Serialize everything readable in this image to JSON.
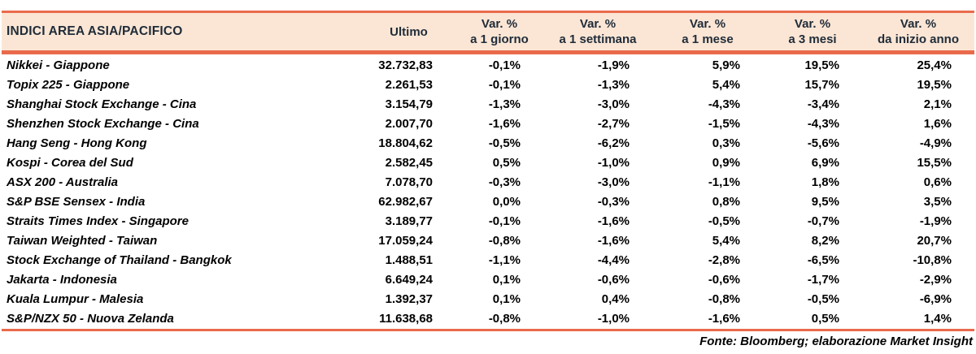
{
  "colors": {
    "accent": "#E96A4B",
    "header_bg": "#FBE6D5",
    "header_text": "#1F2B38"
  },
  "table": {
    "title": "INDICI AREA ASIA/PACIFICO",
    "ultimo_label": "Ultimo",
    "var_label": "Var. %",
    "periods": [
      "a 1 giorno",
      "a 1 settimana",
      "a 1 mese",
      "a 3 mesi",
      "da inizio anno"
    ],
    "rows": [
      {
        "name": "Nikkei - Giappone",
        "ultimo": "32.732,83",
        "d1": "-0,1%",
        "w1": "-1,9%",
        "m1": "5,9%",
        "m3": "19,5%",
        "ytd": "25,4%"
      },
      {
        "name": "Topix 225 - Giappone",
        "ultimo": "2.261,53",
        "d1": "-0,1%",
        "w1": "-1,3%",
        "m1": "5,4%",
        "m3": "15,7%",
        "ytd": "19,5%"
      },
      {
        "name": "Shanghai Stock Exchange - Cina",
        "ultimo": "3.154,79",
        "d1": "-1,3%",
        "w1": "-3,0%",
        "m1": "-4,3%",
        "m3": "-3,4%",
        "ytd": "2,1%"
      },
      {
        "name": "Shenzhen Stock Exchange - Cina",
        "ultimo": "2.007,70",
        "d1": "-1,6%",
        "w1": "-2,7%",
        "m1": "-1,5%",
        "m3": "-4,3%",
        "ytd": "1,6%"
      },
      {
        "name": "Hang Seng - Hong Kong",
        "ultimo": "18.804,62",
        "d1": "-0,5%",
        "w1": "-6,2%",
        "m1": "0,3%",
        "m3": "-5,6%",
        "ytd": "-4,9%"
      },
      {
        "name": "Kospi - Corea del Sud",
        "ultimo": "2.582,45",
        "d1": "0,5%",
        "w1": "-1,0%",
        "m1": "0,9%",
        "m3": "6,9%",
        "ytd": "15,5%"
      },
      {
        "name": "ASX 200 - Australia",
        "ultimo": "7.078,70",
        "d1": "-0,3%",
        "w1": "-3,0%",
        "m1": "-1,1%",
        "m3": "1,8%",
        "ytd": "0,6%"
      },
      {
        "name": "S&P BSE Sensex - India",
        "ultimo": "62.982,67",
        "d1": "0,0%",
        "w1": "-0,3%",
        "m1": "0,8%",
        "m3": "9,5%",
        "ytd": "3,5%"
      },
      {
        "name": "Straits Times Index - Singapore",
        "ultimo": "3.189,77",
        "d1": "-0,1%",
        "w1": "-1,6%",
        "m1": "-0,5%",
        "m3": "-0,7%",
        "ytd": "-1,9%"
      },
      {
        "name": "Taiwan Weighted - Taiwan",
        "ultimo": "17.059,24",
        "d1": "-0,8%",
        "w1": "-1,6%",
        "m1": "5,4%",
        "m3": "8,2%",
        "ytd": "20,7%"
      },
      {
        "name": "Stock Exchange of Thailand - Bangkok",
        "ultimo": "1.488,51",
        "d1": "-1,1%",
        "w1": "-4,4%",
        "m1": "-2,8%",
        "m3": "-6,5%",
        "ytd": "-10,8%"
      },
      {
        "name": "Jakarta - Indonesia",
        "ultimo": "6.649,24",
        "d1": "0,1%",
        "w1": "-0,6%",
        "m1": "-0,6%",
        "m3": "-1,7%",
        "ytd": "-2,9%"
      },
      {
        "name": "Kuala Lumpur - Malesia",
        "ultimo": "1.392,37",
        "d1": "0,1%",
        "w1": "0,4%",
        "m1": "-0,8%",
        "m3": "-0,5%",
        "ytd": "-6,9%"
      },
      {
        "name": "S&P/NZX 50 - Nuova Zelanda",
        "ultimo": "11.638,68",
        "d1": "-0,8%",
        "w1": "-1,0%",
        "m1": "-1,6%",
        "m3": "0,5%",
        "ytd": "1,4%"
      }
    ]
  },
  "footer": "Fonte: Bloomberg; elaborazione Market Insight",
  "chart_data": {
    "type": "table",
    "title": "INDICI AREA ASIA/PACIFICO",
    "columns": [
      "INDICI AREA ASIA/PACIFICO",
      "Ultimo",
      "Var. % a 1 giorno",
      "Var. % a 1 settimana",
      "Var. % a 1 mese",
      "Var. % a 3 mesi",
      "Var. % da inizio anno"
    ],
    "rows": [
      [
        "Nikkei - Giappone",
        "32.732,83",
        "-0,1%",
        "-1,9%",
        "5,9%",
        "19,5%",
        "25,4%"
      ],
      [
        "Topix 225 - Giappone",
        "2.261,53",
        "-0,1%",
        "-1,3%",
        "5,4%",
        "15,7%",
        "19,5%"
      ],
      [
        "Shanghai Stock Exchange - Cina",
        "3.154,79",
        "-1,3%",
        "-3,0%",
        "-4,3%",
        "-3,4%",
        "2,1%"
      ],
      [
        "Shenzhen Stock Exchange - Cina",
        "2.007,70",
        "-1,6%",
        "-2,7%",
        "-1,5%",
        "-4,3%",
        "1,6%"
      ],
      [
        "Hang Seng - Hong Kong",
        "18.804,62",
        "-0,5%",
        "-6,2%",
        "0,3%",
        "-5,6%",
        "-4,9%"
      ],
      [
        "Kospi - Corea del Sud",
        "2.582,45",
        "0,5%",
        "-1,0%",
        "0,9%",
        "6,9%",
        "15,5%"
      ],
      [
        "ASX 200 - Australia",
        "7.078,70",
        "-0,3%",
        "-3,0%",
        "-1,1%",
        "1,8%",
        "0,6%"
      ],
      [
        "S&P BSE Sensex - India",
        "62.982,67",
        "0,0%",
        "-0,3%",
        "0,8%",
        "9,5%",
        "3,5%"
      ],
      [
        "Straits Times Index - Singapore",
        "3.189,77",
        "-0,1%",
        "-1,6%",
        "-0,5%",
        "-0,7%",
        "-1,9%"
      ],
      [
        "Taiwan Weighted - Taiwan",
        "17.059,24",
        "-0,8%",
        "-1,6%",
        "5,4%",
        "8,2%",
        "20,7%"
      ],
      [
        "Stock Exchange of Thailand - Bangkok",
        "1.488,51",
        "-1,1%",
        "-4,4%",
        "-2,8%",
        "-6,5%",
        "-10,8%"
      ],
      [
        "Jakarta - Indonesia",
        "6.649,24",
        "0,1%",
        "-0,6%",
        "-0,6%",
        "-1,7%",
        "-2,9%"
      ],
      [
        "Kuala Lumpur - Malesia",
        "1.392,37",
        "0,1%",
        "0,4%",
        "-0,8%",
        "-0,5%",
        "-6,9%"
      ],
      [
        "S&P/NZX 50 - Nuova Zelanda",
        "11.638,68",
        "-0,8%",
        "-1,0%",
        "-1,6%",
        "0,5%",
        "1,4%"
      ]
    ],
    "source_note": "Fonte: Bloomberg; elaborazione Market Insight"
  }
}
